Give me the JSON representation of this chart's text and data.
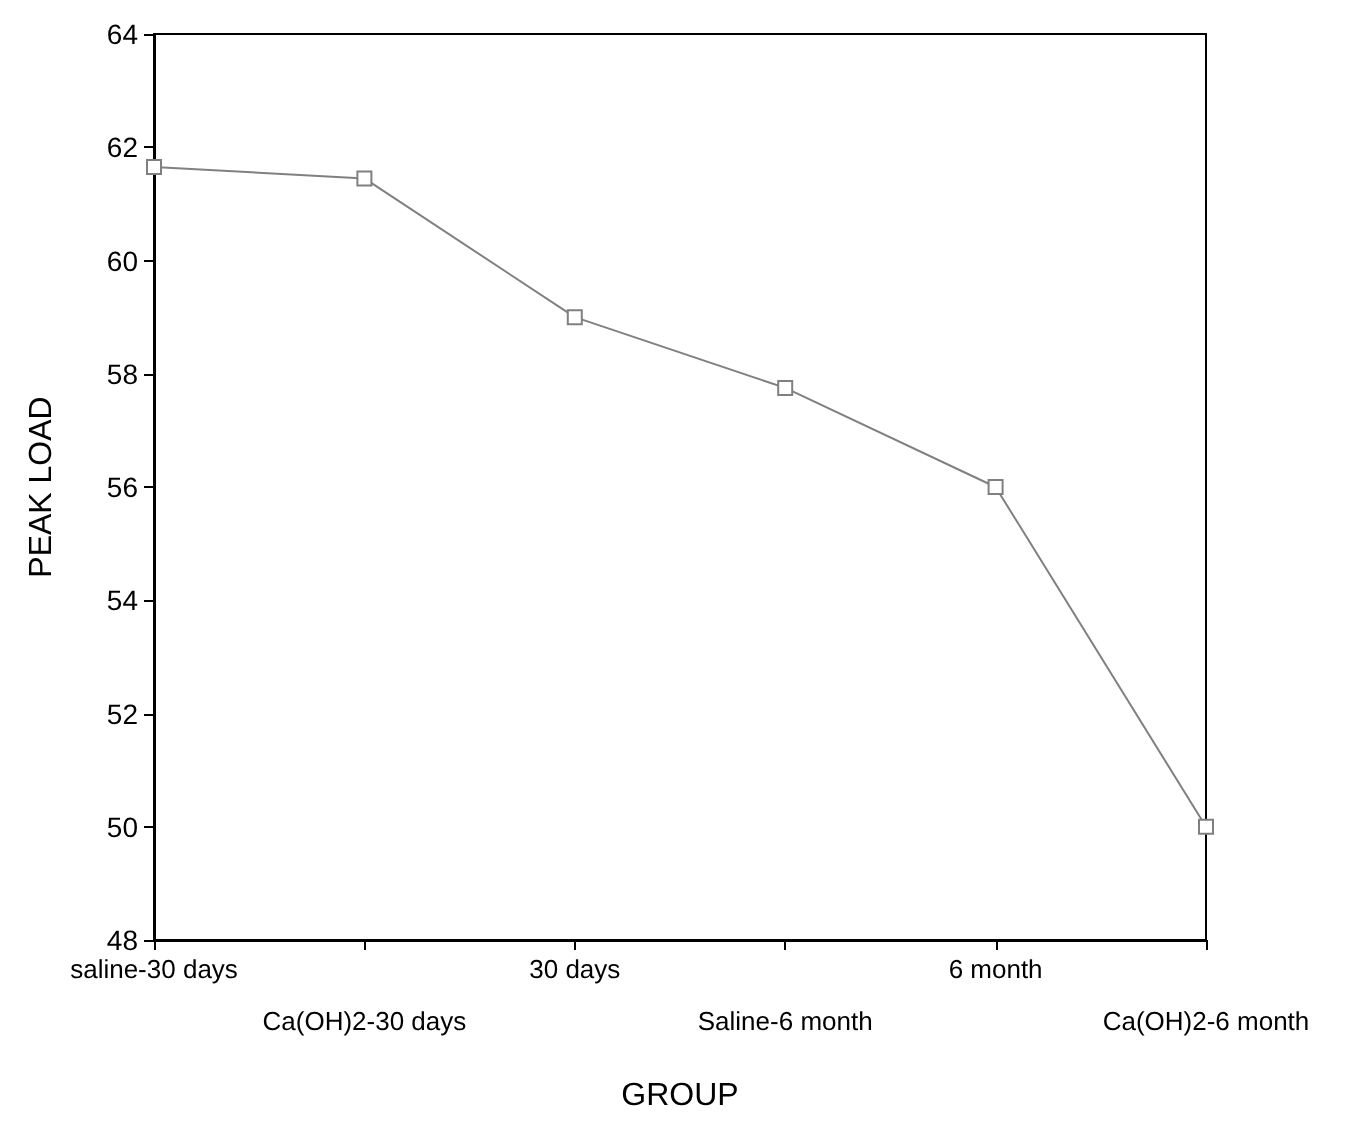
{
  "chart_data": {
    "type": "line",
    "xlabel": "GROUP",
    "ylabel": "PEAK LOAD",
    "categories": [
      "saline-30 days",
      "Ca(OH)2-30 days",
      "30 days",
      "Saline-6 month",
      "6 month",
      "Ca(OH)2-6 month"
    ],
    "series": [
      {
        "color": "#808080",
        "values": [
          61.65,
          61.45,
          59.0,
          57.75,
          56.0,
          50.0
        ]
      }
    ],
    "ylim": [
      48,
      64
    ],
    "yticks": [
      48,
      50,
      52,
      54,
      56,
      58,
      60,
      62,
      64
    ],
    "marker": "square",
    "line_style": "solid",
    "grid": false
  }
}
